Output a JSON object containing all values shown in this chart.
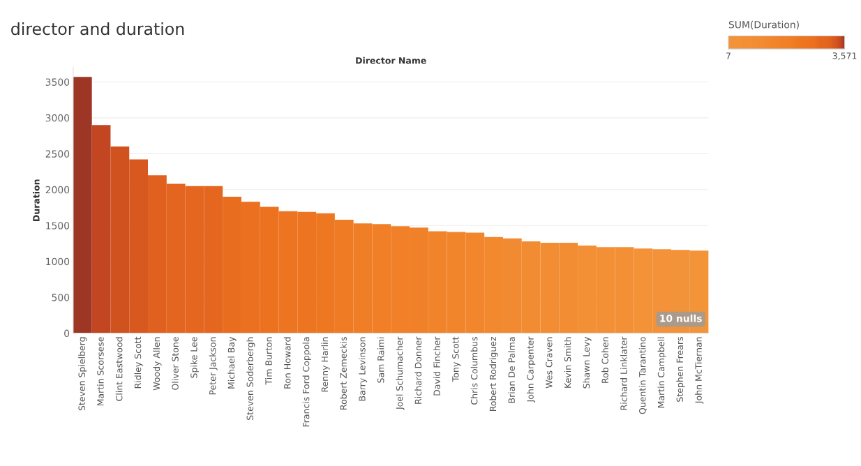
{
  "chart_data": {
    "type": "bar",
    "title": "director and duration",
    "xlabel": "Director Name",
    "ylabel": "Duration",
    "clabel": "SUM(Duration)",
    "categories": [
      "Steven Spielberg",
      "Martin Scorsese",
      "Clint Eastwood",
      "Ridley Scott",
      "Woody Allen",
      "Oliver Stone",
      "Spike Lee",
      "Peter Jackson",
      "Michael Bay",
      "Steven Soderbergh",
      "Tim Burton",
      "Ron Howard",
      "Francis Ford Coppola",
      "Renny Harlin",
      "Robert Zemeckis",
      "Barry Levinson",
      "Sam Raimi",
      "Joel Schumacher",
      "Richard Donner",
      "David Fincher",
      "Tony Scott",
      "Chris Columbus",
      "Robert Rodriguez",
      "Brian De Palma",
      "John Carpenter",
      "Wes Craven",
      "Kevin Smith",
      "Shawn Levy",
      "Rob Cohen",
      "Richard Linklater",
      "Quentin Tarantino",
      "Martin Campbell",
      "Stephen Frears",
      "John McTiernan"
    ],
    "values": [
      3571,
      2900,
      2600,
      2420,
      2200,
      2080,
      2050,
      2050,
      1900,
      1830,
      1760,
      1700,
      1690,
      1670,
      1580,
      1530,
      1520,
      1490,
      1470,
      1420,
      1410,
      1400,
      1340,
      1320,
      1280,
      1260,
      1260,
      1220,
      1200,
      1200,
      1180,
      1170,
      1160,
      1150
    ],
    "colors": [
      "#9e3625",
      "#c24622",
      "#d0521f",
      "#d8591f",
      "#e0611f",
      "#e3651f",
      "#e4661f",
      "#e4661f",
      "#e96d1f",
      "#eb701f",
      "#ec7220",
      "#ed7521",
      "#ed7521",
      "#ee7722",
      "#ef7b24",
      "#f07e26",
      "#f07f27",
      "#f18028",
      "#f18129",
      "#f1842b",
      "#f1852c",
      "#f2862d",
      "#f2892f",
      "#f28a31",
      "#f28c32",
      "#f38d33",
      "#f38d33",
      "#f38f35",
      "#f39036",
      "#f39036",
      "#f39237",
      "#f39238",
      "#f39339",
      "#f39439"
    ],
    "ylim": [
      0,
      3700
    ],
    "yticks": [
      0,
      500,
      1000,
      1500,
      2000,
      2500,
      3000,
      3500
    ],
    "clim": [
      7,
      3571
    ],
    "cticks": [
      7,
      {
        "value": 3571,
        "label": "3,571"
      }
    ],
    "grid": "y",
    "annotations": [
      "10 nulls"
    ]
  }
}
